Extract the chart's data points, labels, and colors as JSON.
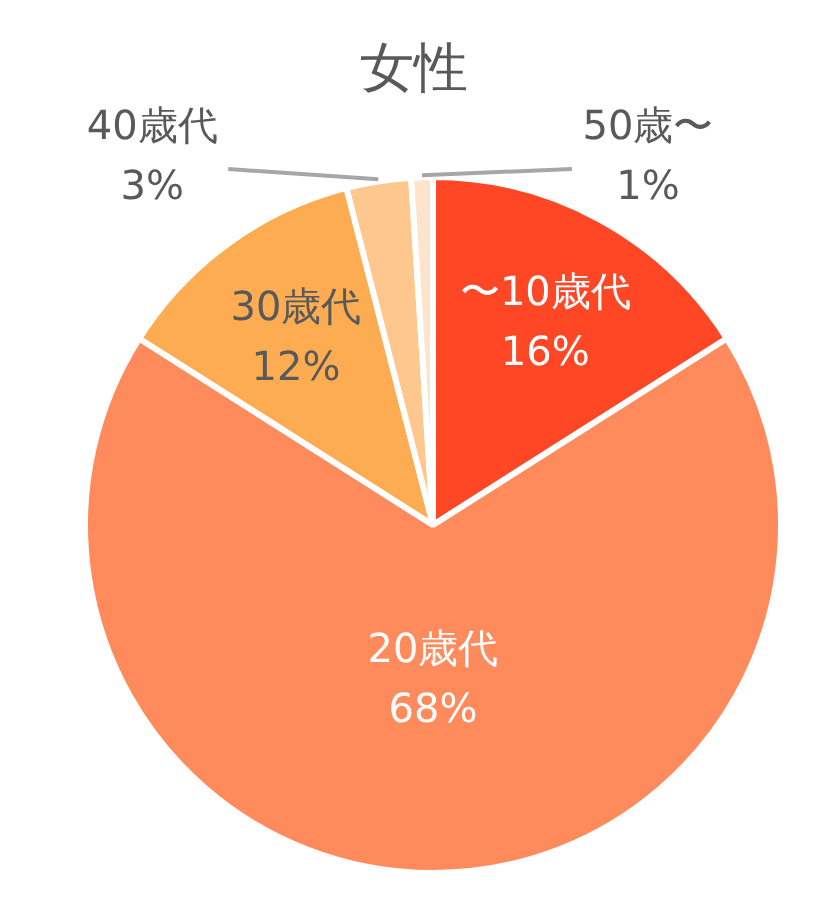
{
  "chart_data": {
    "type": "pie",
    "title": "女性",
    "categories": [
      "〜10歳代",
      "20歳代",
      "30歳代",
      "40歳代",
      "50歳〜"
    ],
    "values": [
      16,
      68,
      12,
      3,
      1
    ],
    "colors": [
      "#ff4726",
      "#ff8a5b",
      "#fdac52",
      "#fec78e",
      "#fde4cc"
    ],
    "value_labels": [
      "16%",
      "68%",
      "12%",
      "3%",
      "1%"
    ]
  }
}
